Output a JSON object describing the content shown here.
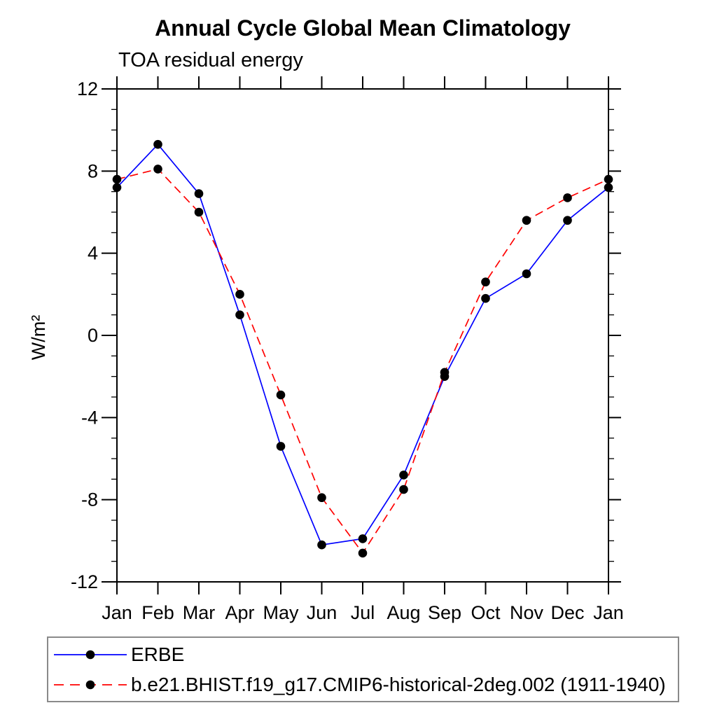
{
  "chart_data": {
    "type": "line",
    "title": "Annual Cycle Global Mean Climatology",
    "subtitle": "TOA residual energy",
    "ylabel": "W/m²",
    "xlabel": "",
    "categories": [
      "Jan",
      "Feb",
      "Mar",
      "Apr",
      "May",
      "Jun",
      "Jul",
      "Aug",
      "Sep",
      "Oct",
      "Nov",
      "Dec",
      "Jan"
    ],
    "series": [
      {
        "name": "ERBE",
        "color": "#0000ff",
        "line_style": "solid",
        "marker": "filled-circle",
        "marker_color": "#000000",
        "values": [
          7.2,
          9.3,
          6.9,
          1.0,
          -5.4,
          -10.2,
          -9.9,
          -6.8,
          -2.0,
          1.8,
          3.0,
          5.6,
          7.2
        ]
      },
      {
        "name": "b.e21.BHIST.f19_g17.CMIP6-historical-2deg.002 (1911-1940)",
        "color": "#ff0000",
        "line_style": "dashed",
        "marker": "filled-circle",
        "marker_color": "#000000",
        "values": [
          7.6,
          8.1,
          6.0,
          2.0,
          -2.9,
          -7.9,
          -10.6,
          -7.5,
          -1.8,
          2.6,
          5.6,
          6.7,
          7.6
        ]
      }
    ],
    "ylim": [
      -12,
      12
    ],
    "ytick_major_step": 4,
    "ytick_minor_step": 1,
    "ytick_labels": [
      "12",
      "8",
      "4",
      "0",
      "-4",
      "-8",
      "-12"
    ],
    "grid": false,
    "legend_position": "bottom",
    "frame_color": "#000000"
  }
}
